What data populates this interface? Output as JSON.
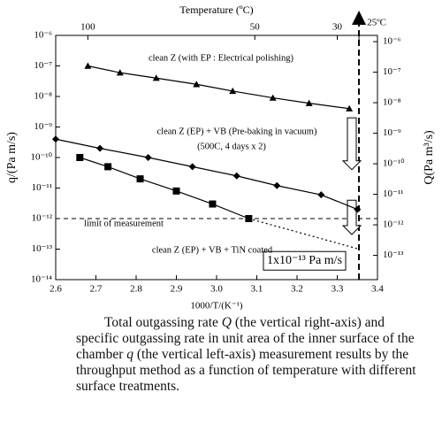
{
  "chart_data": {
    "type": "scatter",
    "x_label": "1000/T/(K⁻¹)",
    "y_label": "q/(Pa m/s)",
    "y2_label": "Q(Pa m³/s)",
    "top_label": "Temperature (ºC)",
    "log_y": true,
    "xlim": [
      2.6,
      3.4
    ],
    "xticks": [
      2.6,
      2.7,
      2.8,
      2.9,
      {
        "value": 3,
        "label": "3.0"
      },
      3.1,
      3.2,
      3.3,
      3.4
    ],
    "ylim": [
      1e-14,
      1e-06
    ],
    "yticks": [
      {
        "value": 1e-14,
        "label": "10⁻¹⁴"
      },
      {
        "value": 1e-13,
        "label": "10⁻¹³"
      },
      {
        "value": 1e-12,
        "label": "10⁻¹²"
      },
      {
        "value": 1e-11,
        "label": "10⁻¹¹"
      },
      {
        "value": 1e-10,
        "label": "10⁻¹⁰"
      },
      {
        "value": 1e-09,
        "label": "10⁻⁹"
      },
      {
        "value": 1e-08,
        "label": "10⁻⁸"
      },
      {
        "value": 1e-07,
        "label": "10⁻⁷"
      },
      {
        "value": 1e-06,
        "label": "10⁻⁶"
      }
    ],
    "y2lim": [
      1.6e-14,
      1.6e-06
    ],
    "y2ticks": [
      {
        "value": 1e-13,
        "label": "10⁻¹³"
      },
      {
        "value": 1e-12,
        "label": "10⁻¹²"
      },
      {
        "value": 1e-11,
        "label": "10⁻¹¹"
      },
      {
        "value": 1e-10,
        "label": "10⁻¹⁰"
      },
      {
        "value": 1e-09,
        "label": "10⁻⁹"
      },
      {
        "value": 1e-08,
        "label": "10⁻⁸"
      },
      {
        "value": 1e-07,
        "label": "10⁻⁷"
      },
      {
        "value": 1e-06,
        "label": "10⁻⁶"
      }
    ],
    "top_ticks": [
      {
        "value": 2.68,
        "label": "100"
      },
      {
        "value": 3.095,
        "label": "50"
      },
      {
        "value": 3.3,
        "label": "30"
      },
      {
        "value": 3.354,
        "label": "25ºC"
      }
    ],
    "series": [
      {
        "marker": "triangle",
        "color": "#000000",
        "x": [
          2.68,
          2.76,
          2.85,
          2.95,
          3.04,
          3.14,
          3.23,
          3.33
        ],
        "values": [
          1e-07,
          6e-08,
          4e-08,
          2.5e-08,
          1.5e-08,
          9e-09,
          6e-09,
          4e-09
        ]
      },
      {
        "marker": "diamond",
        "color": "#000000",
        "x": [
          2.6,
          2.71,
          2.83,
          2.94,
          3.05,
          3.15,
          3.26,
          3.35
        ],
        "values": [
          4e-10,
          2e-10,
          1e-10,
          5e-11,
          2.5e-11,
          1.2e-11,
          6e-12,
          2e-12
        ]
      },
      {
        "marker": "square",
        "color": "#000000",
        "x": [
          2.66,
          2.73,
          2.81,
          2.9,
          2.99,
          3.08
        ],
        "values": [
          1e-10,
          5e-11,
          2e-11,
          8e-12,
          3e-12,
          1e-12
        ]
      },
      {
        "marker": "none",
        "dotted": true,
        "color": "#000000",
        "x": [
          3.08,
          3.354
        ],
        "values": [
          1e-12,
          1e-13
        ]
      }
    ],
    "limit": 1e-12,
    "annotations": [
      "clean Z (with EP : Electrical polishing)",
      "clean Z (EP) + VB (Pre-baking in vacuum)",
      "(500C, 4 days x 2)",
      "limit of measurement",
      "clean Z (EP) + VB + TiN coated",
      "1x10⁻¹³ Pa m/s"
    ]
  },
  "caption": [
    "Total outgassing rate ",
    "Q",
    " (the vertical right-axis) and specific outgassing rate in unit area of the inner surface of the chamber ",
    "q",
    " (the vertical left-axis) measurement results by the throughput method as a function of temperature with different surface treatments."
  ]
}
